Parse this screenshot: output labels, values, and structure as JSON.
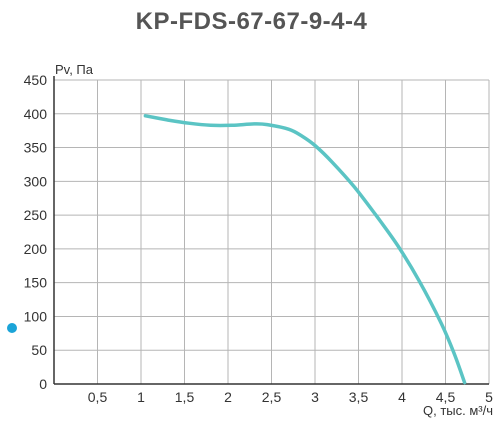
{
  "title": "KP-FDS-67-67-9-4-4",
  "colors": {
    "curve": "#5bc4c4",
    "bullet": "#1ba4d8",
    "grid": "#b5b5b5",
    "axis": "#333333",
    "title": "#555555"
  },
  "chart_data": {
    "type": "line",
    "title": "KP-FDS-67-67-9-4-4",
    "xlabel": "Q, тыс. м³/ч",
    "ylabel": "Pv, Па",
    "xlim": [
      0,
      5
    ],
    "ylim": [
      0,
      450
    ],
    "grid": true,
    "x_ticks": [
      0.5,
      1,
      1.5,
      2,
      2.5,
      3,
      3.5,
      4,
      4.5,
      5
    ],
    "x_tick_labels": [
      "0,5",
      "1",
      "1,5",
      "2",
      "2,5",
      "3",
      "3,5",
      "4",
      "4,5",
      "5"
    ],
    "y_ticks": [
      0,
      50,
      100,
      150,
      200,
      250,
      300,
      350,
      400,
      450
    ],
    "y_tick_labels": [
      "0",
      "50",
      "100",
      "150",
      "200",
      "250",
      "300",
      "350",
      "400",
      "450"
    ],
    "series": [
      {
        "x": [
          1.05,
          1.3,
          1.55,
          1.8,
          2.05,
          2.3,
          2.45,
          2.7,
          2.85,
          3.0,
          3.2,
          3.45,
          3.7,
          3.95,
          4.2,
          4.45,
          4.6,
          4.72
        ],
        "y": [
          397,
          391,
          386,
          383,
          383,
          385,
          384,
          377,
          367,
          353,
          328,
          292,
          250,
          205,
          152,
          90,
          45,
          2
        ]
      }
    ]
  }
}
